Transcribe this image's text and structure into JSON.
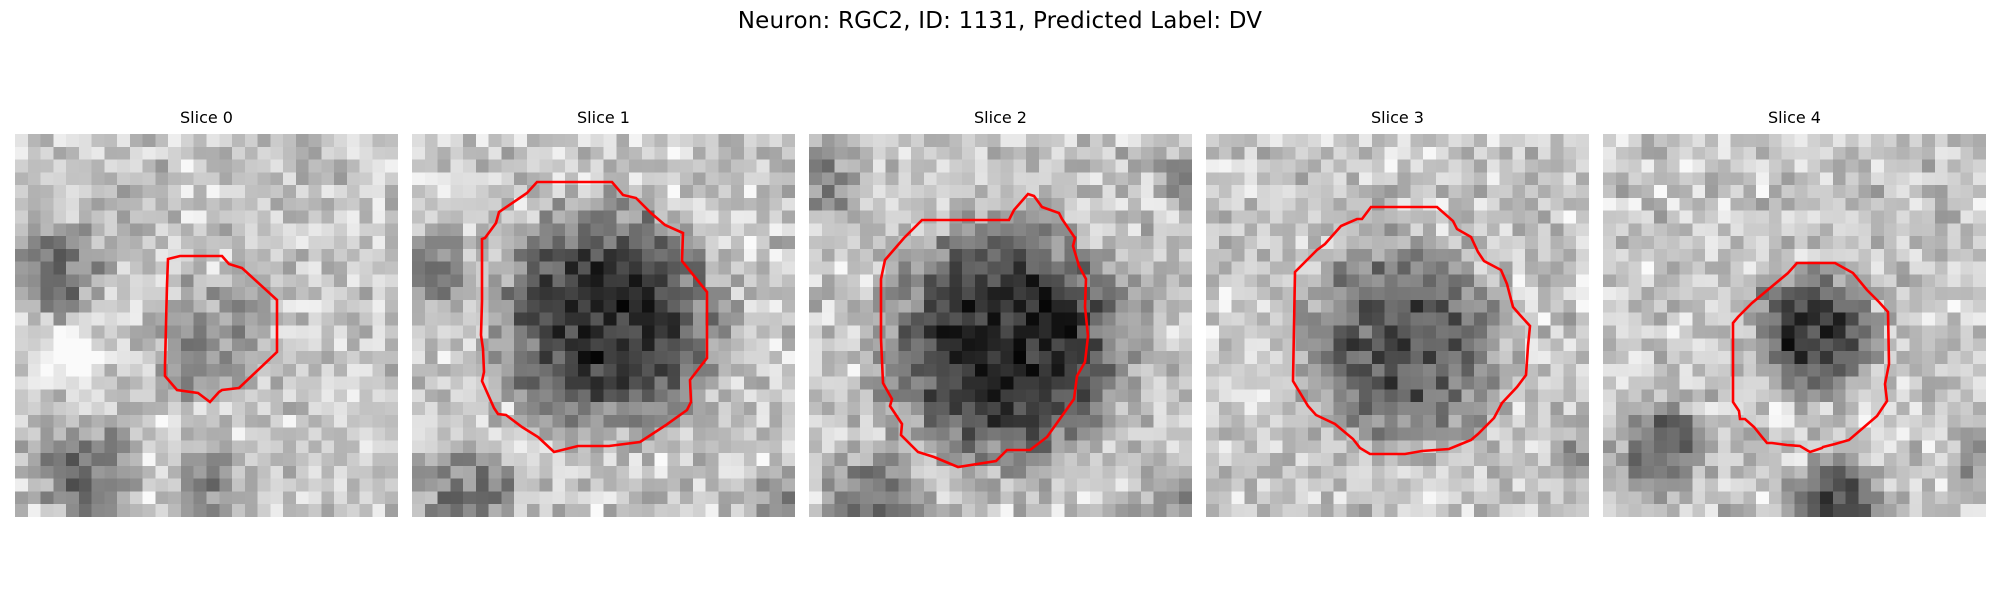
{
  "figure": {
    "title": "Neuron: RGC2, ID: 1131, Predicted Label: DV"
  },
  "colors": {
    "outline": "#ff0000",
    "background": "#ffffff"
  },
  "panels": [
    {
      "title": "Slice 0"
    },
    {
      "title": "Slice 1"
    },
    {
      "title": "Slice 2"
    },
    {
      "title": "Slice 3"
    },
    {
      "title": "Slice 4"
    }
  ]
}
